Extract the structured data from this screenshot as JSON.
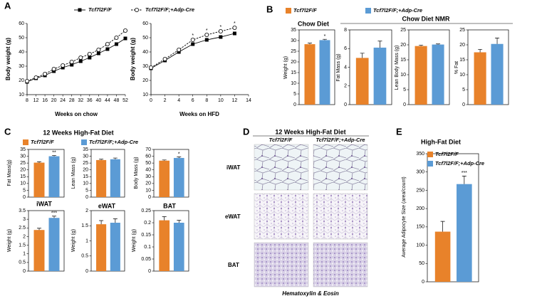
{
  "chart_data": [
    {
      "type": "line",
      "panel": "A",
      "legend": "top",
      "ylabel": "Body weight (g)",
      "xlabel": "Weeks on chow",
      "x": [
        8,
        12,
        16,
        20,
        24,
        28,
        32,
        36,
        40,
        44,
        48,
        52
      ],
      "xlim": [
        8,
        52
      ],
      "xticks": [
        8,
        12,
        16,
        20,
        24,
        28,
        32,
        36,
        40,
        44,
        48,
        52
      ],
      "ylim": [
        10,
        60
      ],
      "yticks": [
        10,
        20,
        30,
        40,
        50,
        60
      ],
      "series": [
        {
          "name": "Tcf7l2F/F",
          "color": "#000000",
          "marker": "square",
          "dashed": false,
          "values": [
            19,
            21.5,
            23.5,
            26.5,
            29,
            31,
            33.5,
            36,
            39,
            42,
            45.5,
            49.5
          ]
        },
        {
          "name": "Tcf7l2F/F;+Adp-Cre",
          "color": "#000000",
          "marker": "circle",
          "dashed": true,
          "values": [
            19.5,
            22,
            24.5,
            28,
            30.5,
            33,
            36,
            38.5,
            41.5,
            45.5,
            50,
            55
          ]
        }
      ]
    },
    {
      "type": "line",
      "ylabel": "Body weight (g)",
      "xlabel": "Weeks on HFD",
      "x": [
        0,
        2,
        4,
        6,
        8,
        10,
        12
      ],
      "xlim": [
        0,
        14
      ],
      "xticks": [
        0,
        2,
        4,
        6,
        8,
        10,
        12,
        14
      ],
      "ylim": [
        10,
        60
      ],
      "yticks": [
        10,
        20,
        30,
        40,
        50,
        60
      ],
      "series": [
        {
          "color": "#000000",
          "marker": "square",
          "dashed": false,
          "values": [
            28.5,
            34,
            40,
            45.5,
            48.5,
            50.5,
            53
          ]
        },
        {
          "color": "#000000",
          "marker": "circle",
          "dashed": true,
          "values": [
            29,
            35,
            41.5,
            48.5,
            52,
            54.5,
            57
          ]
        }
      ],
      "annotations": [
        {
          "x": 6,
          "text": "*"
        },
        {
          "x": 8,
          "text": "*"
        },
        {
          "x": 10,
          "text": "*"
        },
        {
          "x": 12,
          "text": "*"
        }
      ]
    },
    {
      "type": "bar",
      "panel": "B",
      "legend": "top",
      "title": "Chow Diet",
      "ylabel": "Weight (g)",
      "ylim": [
        0,
        35
      ],
      "yticks": [
        0,
        5,
        10,
        15,
        20,
        25,
        30,
        35
      ],
      "series": [
        {
          "name": "Tcf7l2F/F",
          "color": "#e8822a",
          "values": [
            28.3
          ],
          "errors": [
            0.5
          ]
        },
        {
          "name": "Tcf7l2F/F;+Adp-Cre",
          "color": "#5b9bd5",
          "values": [
            30.2
          ],
          "errors": [
            0.4
          ],
          "annotation": "*"
        }
      ]
    },
    {
      "type": "bar",
      "group_title": "Chow Diet NMR",
      "ylabel": "Fat Mass (g)",
      "ylim": [
        0,
        8
      ],
      "yticks": [
        0,
        2,
        4,
        6,
        8
      ],
      "series": [
        {
          "color": "#e8822a",
          "values": [
            5.0
          ],
          "errors": [
            0.5
          ]
        },
        {
          "color": "#5b9bd5",
          "values": [
            6.1
          ],
          "errors": [
            0.7
          ]
        }
      ]
    },
    {
      "type": "bar",
      "ylabel": "Lean Body Mass (g)",
      "ylim": [
        0,
        25
      ],
      "yticks": [
        0,
        5,
        10,
        15,
        20,
        25
      ],
      "series": [
        {
          "color": "#e8822a",
          "values": [
            19.6
          ],
          "errors": [
            0.3
          ]
        },
        {
          "color": "#5b9bd5",
          "values": [
            20.1
          ],
          "errors": [
            0.2
          ]
        }
      ]
    },
    {
      "type": "bar",
      "ylabel": "% Fat",
      "ylim": [
        0,
        25
      ],
      "yticks": [
        0,
        5,
        10,
        15,
        20,
        25
      ],
      "series": [
        {
          "color": "#e8822a",
          "values": [
            17.5
          ],
          "errors": [
            1.0
          ]
        },
        {
          "color": "#5b9bd5",
          "values": [
            20.3
          ],
          "errors": [
            2.0
          ]
        }
      ]
    },
    {
      "type": "bar",
      "panel": "C",
      "legend": "top",
      "group_title": "12 Weeks High-Fat Diet",
      "ylabel": "Fat Mass(g)",
      "ylim": [
        0,
        35
      ],
      "yticks": [
        0,
        5,
        10,
        15,
        20,
        25,
        30,
        35
      ],
      "series": [
        {
          "name": "Tcf7l2F/F",
          "color": "#e8822a",
          "values": [
            25.3
          ],
          "errors": [
            0.7
          ]
        },
        {
          "name": "Tcf7l2F/F;+Adp-Cre",
          "color": "#5b9bd5",
          "values": [
            30.0
          ],
          "errors": [
            0.6
          ],
          "annotation": "**"
        }
      ]
    },
    {
      "type": "bar",
      "ylabel": "Lean Mass (g)",
      "ylim": [
        0,
        35
      ],
      "yticks": [
        0,
        5,
        10,
        15,
        20,
        25,
        30,
        35
      ],
      "series": [
        {
          "color": "#e8822a",
          "values": [
            27.2
          ],
          "errors": [
            0.6
          ]
        },
        {
          "color": "#5b9bd5",
          "values": [
            27.8
          ],
          "errors": [
            0.9
          ]
        }
      ]
    },
    {
      "type": "bar",
      "ylabel": "Body Mass (g)",
      "ylim": [
        0,
        70
      ],
      "yticks": [
        0,
        10,
        20,
        30,
        40,
        50,
        60,
        70
      ],
      "series": [
        {
          "color": "#e8822a",
          "values": [
            53.5
          ],
          "errors": [
            1.0
          ]
        },
        {
          "color": "#5b9bd5",
          "values": [
            57.5
          ],
          "errors": [
            1.5
          ],
          "annotation": "*"
        }
      ]
    },
    {
      "type": "bar",
      "title": "iWAT",
      "ylabel": "Weight (g)",
      "ylim": [
        0,
        3.5
      ],
      "yticks": [
        0,
        0.5,
        1,
        1.5,
        2,
        2.5,
        3,
        3.5
      ],
      "series": [
        {
          "color": "#e8822a",
          "values": [
            2.38
          ],
          "errors": [
            0.1
          ]
        },
        {
          "color": "#5b9bd5",
          "values": [
            3.08
          ],
          "errors": [
            0.1
          ],
          "annotation": "***"
        }
      ]
    },
    {
      "type": "bar",
      "title": "eWAT",
      "ylabel": "Weight (g)",
      "ylim": [
        0,
        2
      ],
      "yticks": [
        0,
        0.5,
        1,
        1.5,
        2
      ],
      "series": [
        {
          "color": "#e8822a",
          "values": [
            1.55
          ],
          "errors": [
            0.12
          ]
        },
        {
          "color": "#5b9bd5",
          "values": [
            1.6
          ],
          "errors": [
            0.13
          ]
        }
      ]
    },
    {
      "type": "bar",
      "title": "BAT",
      "ylabel": "Weight (g)",
      "ylim": [
        0,
        0.25
      ],
      "yticks": [
        0,
        0.05,
        0.1,
        0.15,
        0.2,
        0.25
      ],
      "series": [
        {
          "color": "#e8822a",
          "values": [
            0.21
          ],
          "errors": [
            0.015
          ]
        },
        {
          "color": "#5b9bd5",
          "values": [
            0.2
          ],
          "errors": [
            0.01
          ]
        }
      ]
    },
    {
      "type": "bar",
      "panel": "E",
      "legend": "upper left",
      "title": "High-Fat Diet",
      "ylabel": "Average Adipocyte Size (area/count)",
      "ylim": [
        0,
        350
      ],
      "yticks": [
        0,
        50,
        100,
        150,
        200,
        250,
        300,
        350
      ],
      "series": [
        {
          "name": "Tcf7l2F/F",
          "color": "#e8822a",
          "values": [
            137
          ],
          "errors": [
            28
          ]
        },
        {
          "name": "Tcf7l2F/F;+Adp-Cre",
          "color": "#5b9bd5",
          "values": [
            267
          ],
          "errors": [
            22
          ],
          "annotation": "***"
        }
      ]
    }
  ],
  "histology": {
    "panel": "D",
    "title": "12 Weeks High-Fat Diet",
    "columns": [
      "Tcf7l2F/F",
      "Tcf7l2F/F;+Adp-Cre"
    ],
    "rows": [
      "iWAT",
      "eWAT",
      "BAT"
    ],
    "caption": "Hematoxylin & Eosin"
  }
}
